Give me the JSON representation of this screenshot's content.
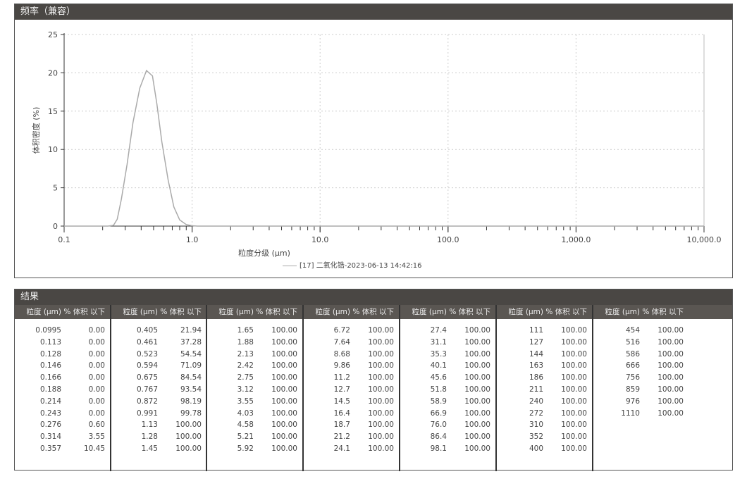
{
  "chart_panel": {
    "title": "频率（兼容）",
    "legend": "[17] 二氧化锆-2023-06-13 14:42:16"
  },
  "chart_data": {
    "type": "line",
    "xlabel": "粒度分级 (μm)",
    "ylabel": "体积密度 (%)",
    "xscale": "log",
    "xlim": [
      0.1,
      10000
    ],
    "ylim": [
      0,
      25
    ],
    "grid": true,
    "xticks": [
      "0.1",
      "1.0",
      "10.0",
      "100.0",
      "1,000.0",
      "10,000.0"
    ],
    "yticks": [
      "0",
      "5",
      "10",
      "15",
      "20",
      "25"
    ],
    "series": [
      {
        "name": "[17] 二氧化锆-2023-06-13 14:42:16",
        "color": "#aaaaaa",
        "x": [
          0.1,
          0.22,
          0.243,
          0.26,
          0.28,
          0.31,
          0.345,
          0.39,
          0.44,
          0.49,
          0.53,
          0.58,
          0.65,
          0.72,
          0.8,
          0.9,
          1.0,
          1.1,
          10000
        ],
        "y": [
          0,
          0,
          0.1,
          0.9,
          3.5,
          8,
          13.5,
          18,
          20.3,
          19.6,
          16,
          11,
          6,
          2.5,
          0.8,
          0.2,
          0.05,
          0,
          0
        ]
      }
    ]
  },
  "table": {
    "title": "结果",
    "col_size": "粒度 (μm)",
    "col_pct": "% 体积 以下",
    "groups": [
      [
        [
          "0.0995",
          "0.00"
        ],
        [
          "0.113",
          "0.00"
        ],
        [
          "0.128",
          "0.00"
        ],
        [
          "0.146",
          "0.00"
        ],
        [
          "0.166",
          "0.00"
        ],
        [
          "0.188",
          "0.00"
        ],
        [
          "0.214",
          "0.00"
        ],
        [
          "0.243",
          "0.00"
        ],
        [
          "0.276",
          "0.60"
        ],
        [
          "0.314",
          "3.55"
        ],
        [
          "0.357",
          "10.45"
        ]
      ],
      [
        [
          "0.405",
          "21.94"
        ],
        [
          "0.461",
          "37.28"
        ],
        [
          "0.523",
          "54.54"
        ],
        [
          "0.594",
          "71.09"
        ],
        [
          "0.675",
          "84.54"
        ],
        [
          "0.767",
          "93.54"
        ],
        [
          "0.872",
          "98.19"
        ],
        [
          "0.991",
          "99.78"
        ],
        [
          "1.13",
          "100.00"
        ],
        [
          "1.28",
          "100.00"
        ],
        [
          "1.45",
          "100.00"
        ]
      ],
      [
        [
          "1.65",
          "100.00"
        ],
        [
          "1.88",
          "100.00"
        ],
        [
          "2.13",
          "100.00"
        ],
        [
          "2.42",
          "100.00"
        ],
        [
          "2.75",
          "100.00"
        ],
        [
          "3.12",
          "100.00"
        ],
        [
          "3.55",
          "100.00"
        ],
        [
          "4.03",
          "100.00"
        ],
        [
          "4.58",
          "100.00"
        ],
        [
          "5.21",
          "100.00"
        ],
        [
          "5.92",
          "100.00"
        ]
      ],
      [
        [
          "6.72",
          "100.00"
        ],
        [
          "7.64",
          "100.00"
        ],
        [
          "8.68",
          "100.00"
        ],
        [
          "9.86",
          "100.00"
        ],
        [
          "11.2",
          "100.00"
        ],
        [
          "12.7",
          "100.00"
        ],
        [
          "14.5",
          "100.00"
        ],
        [
          "16.4",
          "100.00"
        ],
        [
          "18.7",
          "100.00"
        ],
        [
          "21.2",
          "100.00"
        ],
        [
          "24.1",
          "100.00"
        ]
      ],
      [
        [
          "27.4",
          "100.00"
        ],
        [
          "31.1",
          "100.00"
        ],
        [
          "35.3",
          "100.00"
        ],
        [
          "40.1",
          "100.00"
        ],
        [
          "45.6",
          "100.00"
        ],
        [
          "51.8",
          "100.00"
        ],
        [
          "58.9",
          "100.00"
        ],
        [
          "66.9",
          "100.00"
        ],
        [
          "76.0",
          "100.00"
        ],
        [
          "86.4",
          "100.00"
        ],
        [
          "98.1",
          "100.00"
        ]
      ],
      [
        [
          "111",
          "100.00"
        ],
        [
          "127",
          "100.00"
        ],
        [
          "144",
          "100.00"
        ],
        [
          "163",
          "100.00"
        ],
        [
          "186",
          "100.00"
        ],
        [
          "211",
          "100.00"
        ],
        [
          "240",
          "100.00"
        ],
        [
          "272",
          "100.00"
        ],
        [
          "310",
          "100.00"
        ],
        [
          "352",
          "100.00"
        ],
        [
          "400",
          "100.00"
        ]
      ],
      [
        [
          "454",
          "100.00"
        ],
        [
          "516",
          "100.00"
        ],
        [
          "586",
          "100.00"
        ],
        [
          "666",
          "100.00"
        ],
        [
          "756",
          "100.00"
        ],
        [
          "859",
          "100.00"
        ],
        [
          "976",
          "100.00"
        ],
        [
          "1110",
          "100.00"
        ]
      ]
    ]
  }
}
